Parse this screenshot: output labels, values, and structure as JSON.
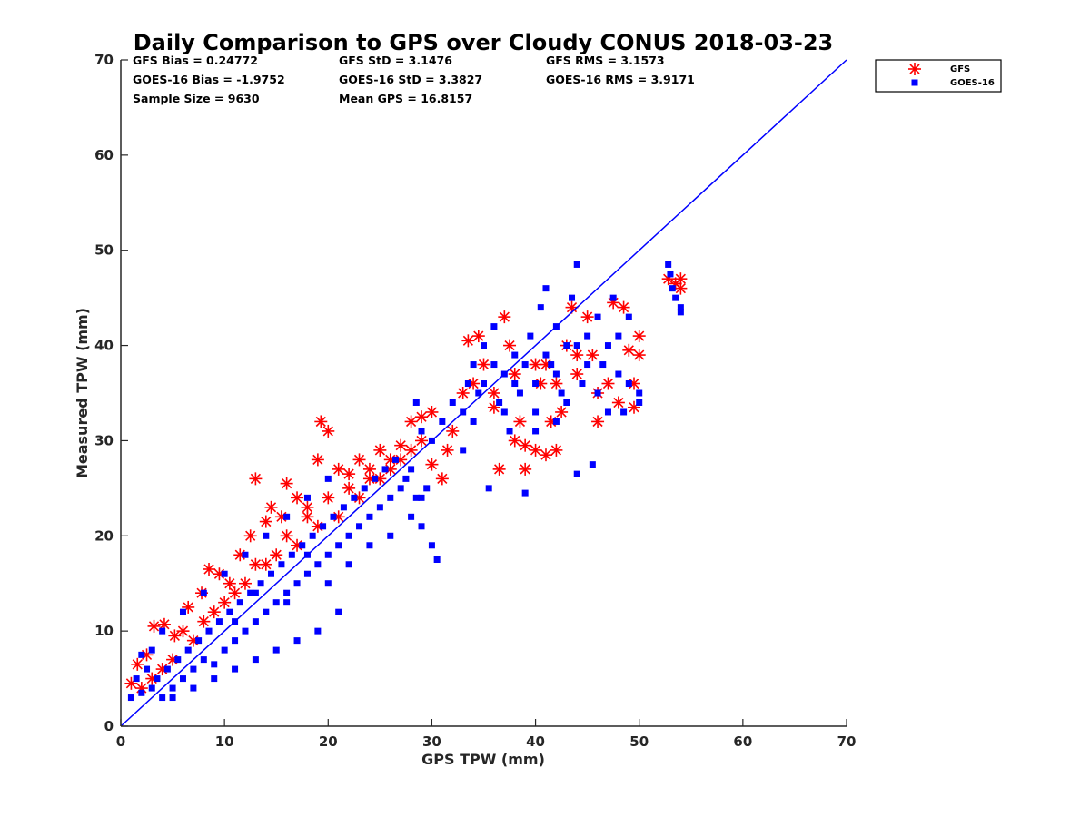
{
  "chart_data": {
    "type": "scatter",
    "title": "Daily Comparison to GPS over Cloudy CONUS 2018-03-23",
    "xlabel": "GPS TPW (mm)",
    "ylabel": "Measured TPW (mm)",
    "xlim": [
      0,
      70
    ],
    "ylim": [
      0,
      70
    ],
    "xticks": [
      "0",
      "10",
      "20",
      "30",
      "40",
      "50",
      "60",
      "70"
    ],
    "yticks": [
      "0",
      "10",
      "20",
      "30",
      "40",
      "50",
      "60",
      "70"
    ],
    "grid": false,
    "legend": "outside top-right",
    "stats": [
      [
        "GFS Bias = 0.24772",
        "GFS StD = 3.1476",
        "GFS RMS = 3.1573"
      ],
      [
        "GOES-16 Bias = -1.9752",
        "GOES-16 StD = 3.3827",
        "GOES-16 RMS = 3.9171"
      ],
      [
        "Sample Size = 9630",
        "Mean GPS = 16.8157",
        ""
      ]
    ],
    "reference_line": {
      "x": [
        0,
        70
      ],
      "y": [
        0,
        70
      ],
      "color": "#0000ff"
    },
    "series": [
      {
        "name": "GFS",
        "marker": "asterisk",
        "color": "#ff0000",
        "points": [
          [
            1,
            4.5
          ],
          [
            1.6,
            6.5
          ],
          [
            2.5,
            7.5
          ],
          [
            3.2,
            10.5
          ],
          [
            4.2,
            10.7
          ],
          [
            5.2,
            9.5
          ],
          [
            6.5,
            12.5
          ],
          [
            7.8,
            14
          ],
          [
            8.5,
            16.5
          ],
          [
            9.5,
            16
          ],
          [
            10.5,
            15
          ],
          [
            11.5,
            18
          ],
          [
            12.5,
            20
          ],
          [
            13,
            26
          ],
          [
            14,
            21.5
          ],
          [
            14.5,
            23
          ],
          [
            15.5,
            22
          ],
          [
            16,
            25.5
          ],
          [
            17,
            24
          ],
          [
            18,
            23
          ],
          [
            19,
            28
          ],
          [
            19.3,
            32
          ],
          [
            20,
            31
          ],
          [
            21,
            27
          ],
          [
            22,
            26.5
          ],
          [
            23,
            28
          ],
          [
            24,
            27
          ],
          [
            25,
            29
          ],
          [
            26,
            28
          ],
          [
            27,
            29.5
          ],
          [
            28,
            32
          ],
          [
            29,
            32.5
          ],
          [
            30,
            27.5
          ],
          [
            31,
            26
          ],
          [
            31.5,
            29
          ],
          [
            32,
            31
          ],
          [
            33,
            35
          ],
          [
            33.5,
            40.5
          ],
          [
            34.5,
            41
          ],
          [
            35,
            38
          ],
          [
            36,
            33.5
          ],
          [
            36.5,
            27
          ],
          [
            37,
            43
          ],
          [
            37.5,
            40
          ],
          [
            38,
            30
          ],
          [
            38.5,
            32
          ],
          [
            39,
            29.5
          ],
          [
            39,
            27
          ],
          [
            40,
            29
          ],
          [
            40.5,
            36
          ],
          [
            41,
            38
          ],
          [
            41.5,
            32
          ],
          [
            41,
            28.5
          ],
          [
            42,
            29
          ],
          [
            42.5,
            33
          ],
          [
            43,
            40
          ],
          [
            43.5,
            44
          ],
          [
            44,
            37
          ],
          [
            45,
            43
          ],
          [
            45.5,
            39
          ],
          [
            46,
            32
          ],
          [
            47,
            36
          ],
          [
            47.5,
            44.5
          ],
          [
            48,
            34
          ],
          [
            48.5,
            44
          ],
          [
            49,
            39.5
          ],
          [
            49.5,
            36
          ],
          [
            50,
            41
          ],
          [
            50,
            39
          ],
          [
            49.5,
            33.5
          ],
          [
            52.8,
            47
          ],
          [
            53.5,
            46.5
          ],
          [
            54,
            47
          ],
          [
            54,
            46
          ],
          [
            3,
            5
          ],
          [
            5,
            7
          ],
          [
            7,
            9
          ],
          [
            9,
            12
          ],
          [
            11,
            14
          ],
          [
            13,
            17
          ],
          [
            15,
            18
          ],
          [
            17,
            19
          ],
          [
            19,
            21
          ],
          [
            21,
            22
          ],
          [
            23,
            24
          ],
          [
            25,
            26
          ],
          [
            27,
            28
          ],
          [
            29,
            30
          ],
          [
            30,
            33
          ],
          [
            34,
            36
          ],
          [
            36,
            35
          ],
          [
            38,
            37
          ],
          [
            40,
            38
          ],
          [
            42,
            36
          ],
          [
            44,
            39
          ],
          [
            46,
            35
          ],
          [
            2,
            4
          ],
          [
            4,
            6
          ],
          [
            6,
            10
          ],
          [
            8,
            11
          ],
          [
            10,
            13
          ],
          [
            12,
            15
          ],
          [
            14,
            17
          ],
          [
            16,
            20
          ],
          [
            18,
            22
          ],
          [
            20,
            24
          ],
          [
            22,
            25
          ],
          [
            24,
            26
          ],
          [
            26,
            27
          ],
          [
            28,
            29
          ]
        ]
      },
      {
        "name": "GOES-16",
        "marker": "square",
        "color": "#0000ff",
        "points": [
          [
            1,
            3
          ],
          [
            1.5,
            5
          ],
          [
            2,
            3.5
          ],
          [
            2.5,
            6
          ],
          [
            3,
            4
          ],
          [
            3.5,
            5
          ],
          [
            4,
            3
          ],
          [
            4.5,
            6
          ],
          [
            5,
            4
          ],
          [
            5.5,
            7
          ],
          [
            6,
            5
          ],
          [
            6.5,
            8
          ],
          [
            7,
            6
          ],
          [
            7.5,
            9
          ],
          [
            8,
            7
          ],
          [
            8.5,
            10
          ],
          [
            9,
            6.5
          ],
          [
            9.5,
            11
          ],
          [
            10,
            8
          ],
          [
            10.5,
            12
          ],
          [
            11,
            9
          ],
          [
            11.5,
            13
          ],
          [
            12,
            10
          ],
          [
            12.5,
            14
          ],
          [
            13,
            11
          ],
          [
            13.5,
            15
          ],
          [
            14,
            12
          ],
          [
            14.5,
            16
          ],
          [
            15,
            13
          ],
          [
            15.5,
            17
          ],
          [
            16,
            14
          ],
          [
            16.5,
            18
          ],
          [
            17,
            15
          ],
          [
            17.5,
            19
          ],
          [
            18,
            16
          ],
          [
            18.5,
            20
          ],
          [
            19,
            17
          ],
          [
            19.5,
            21
          ],
          [
            20,
            18
          ],
          [
            20.5,
            22
          ],
          [
            21,
            19
          ],
          [
            21.5,
            23
          ],
          [
            22,
            20
          ],
          [
            22.5,
            24
          ],
          [
            23,
            21
          ],
          [
            23.5,
            25
          ],
          [
            24,
            22
          ],
          [
            24.5,
            26
          ],
          [
            25,
            23
          ],
          [
            25.5,
            27
          ],
          [
            26,
            24
          ],
          [
            26.5,
            28
          ],
          [
            27,
            25
          ],
          [
            27.5,
            26
          ],
          [
            28,
            27
          ],
          [
            28.5,
            24
          ],
          [
            29,
            21
          ],
          [
            29.5,
            25
          ],
          [
            30,
            19
          ],
          [
            30.5,
            17.5
          ],
          [
            3,
            8
          ],
          [
            5,
            3
          ],
          [
            7,
            4
          ],
          [
            9,
            5
          ],
          [
            11,
            6
          ],
          [
            13,
            7
          ],
          [
            15,
            8
          ],
          [
            17,
            9
          ],
          [
            19,
            10
          ],
          [
            21,
            12
          ],
          [
            2,
            7.5
          ],
          [
            4,
            10
          ],
          [
            6,
            12
          ],
          [
            8,
            14
          ],
          [
            10,
            16
          ],
          [
            12,
            18
          ],
          [
            14,
            20
          ],
          [
            16,
            22
          ],
          [
            18,
            24
          ],
          [
            20,
            26
          ],
          [
            11,
            11
          ],
          [
            13,
            14
          ],
          [
            16,
            13
          ],
          [
            18,
            18
          ],
          [
            20,
            15
          ],
          [
            22,
            17
          ],
          [
            24,
            19
          ],
          [
            26,
            20
          ],
          [
            28,
            22
          ],
          [
            29,
            24
          ],
          [
            33,
            33
          ],
          [
            33.5,
            36
          ],
          [
            34,
            38
          ],
          [
            34.5,
            35
          ],
          [
            35,
            40
          ],
          [
            35.5,
            25
          ],
          [
            36,
            42
          ],
          [
            36.5,
            34
          ],
          [
            37,
            37
          ],
          [
            37.5,
            31
          ],
          [
            38,
            39
          ],
          [
            38.5,
            35
          ],
          [
            39,
            24.5
          ],
          [
            39.5,
            41
          ],
          [
            40,
            33
          ],
          [
            40.5,
            44
          ],
          [
            41,
            46
          ],
          [
            41.5,
            38
          ],
          [
            42,
            42
          ],
          [
            42.5,
            35
          ],
          [
            43,
            40
          ],
          [
            43.5,
            45
          ],
          [
            44,
            48.5
          ],
          [
            44.5,
            36
          ],
          [
            45,
            41
          ],
          [
            45.5,
            27.5
          ],
          [
            44,
            26.5
          ],
          [
            46,
            43
          ],
          [
            46.5,
            38
          ],
          [
            47,
            40
          ],
          [
            47.5,
            45
          ],
          [
            48,
            37
          ],
          [
            48.5,
            33
          ],
          [
            49,
            36
          ],
          [
            50,
            35
          ],
          [
            50,
            34
          ],
          [
            28.5,
            34
          ],
          [
            29,
            31
          ],
          [
            30,
            30
          ],
          [
            31,
            32
          ],
          [
            32,
            34
          ],
          [
            33,
            29
          ],
          [
            34,
            32
          ],
          [
            35,
            36
          ],
          [
            36,
            38
          ],
          [
            37,
            33
          ],
          [
            38,
            36
          ],
          [
            39,
            38
          ],
          [
            40,
            36
          ],
          [
            41,
            39
          ],
          [
            42,
            37
          ],
          [
            43,
            34
          ],
          [
            44,
            40
          ],
          [
            45,
            38
          ],
          [
            46,
            35
          ],
          [
            47,
            33
          ],
          [
            48,
            41
          ],
          [
            49,
            43
          ],
          [
            40,
            31
          ],
          [
            42,
            32
          ],
          [
            52.8,
            48.5
          ],
          [
            53,
            47.5
          ],
          [
            53.2,
            46
          ],
          [
            53.5,
            45
          ],
          [
            54,
            44
          ],
          [
            54,
            43.5
          ]
        ]
      }
    ]
  }
}
